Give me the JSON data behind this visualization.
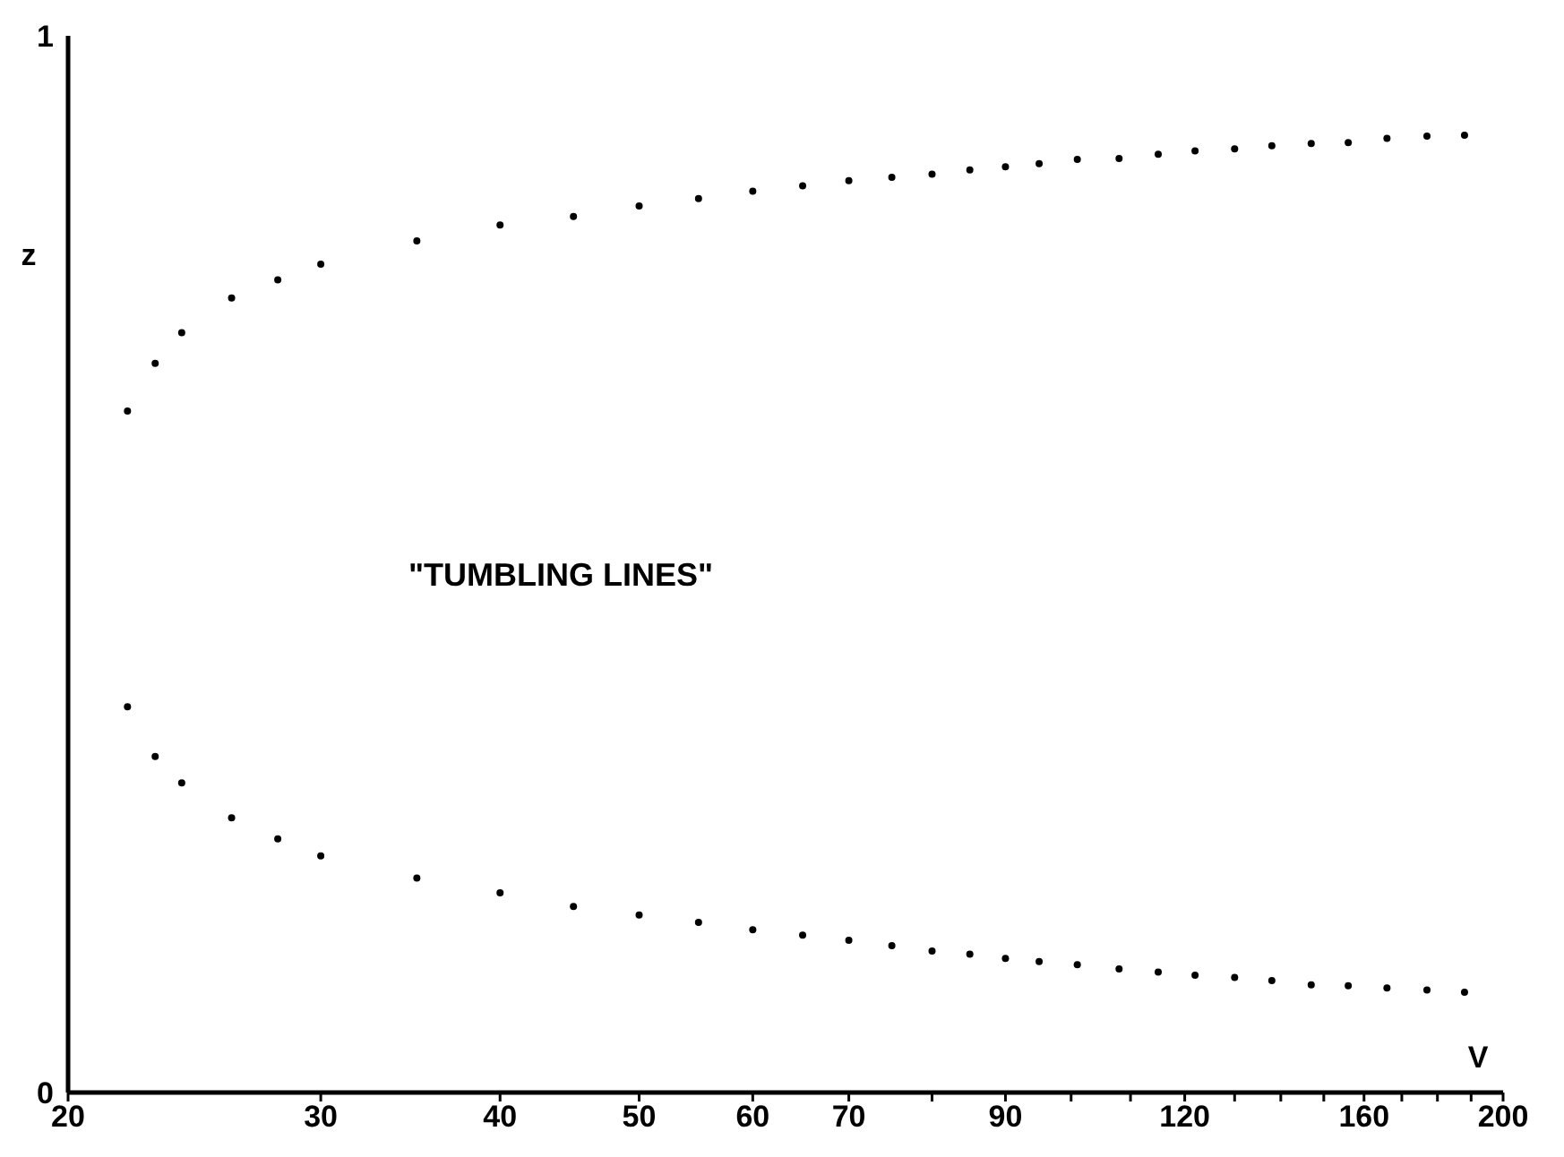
{
  "chart_data": {
    "type": "scatter",
    "xlabel": "V",
    "ylabel": "z",
    "annotations": [
      "\"TUMBLING LINES\""
    ],
    "x": [
      22,
      23,
      24,
      26,
      28,
      30,
      35,
      40,
      45,
      50,
      55,
      60,
      65,
      70,
      75,
      80,
      85,
      90,
      95,
      101,
      108,
      115,
      122,
      130,
      138,
      147,
      156,
      166,
      177,
      188
    ],
    "series": [
      {
        "color": "#000000",
        "values": [
          0.645,
          0.69,
          0.719,
          0.752,
          0.769,
          0.784,
          0.806,
          0.821,
          0.829,
          0.839,
          0.846,
          0.853,
          0.858,
          0.863,
          0.866,
          0.869,
          0.873,
          0.876,
          0.879,
          0.883,
          0.884,
          0.888,
          0.891,
          0.893,
          0.896,
          0.898,
          0.899,
          0.903,
          0.905,
          0.906
        ]
      },
      {
        "color": "#000000",
        "values": [
          0.365,
          0.318,
          0.293,
          0.26,
          0.24,
          0.224,
          0.203,
          0.189,
          0.176,
          0.168,
          0.161,
          0.154,
          0.149,
          0.144,
          0.139,
          0.134,
          0.131,
          0.127,
          0.124,
          0.121,
          0.117,
          0.114,
          0.111,
          0.109,
          0.106,
          0.102,
          0.101,
          0.099,
          0.097,
          0.095
        ]
      }
    ],
    "log": "x",
    "xlim": [
      20,
      200
    ],
    "xticks": [
      20,
      30,
      40,
      50,
      60,
      70,
      {
        "value": 80,
        "label": null
      },
      90,
      {
        "value": 100,
        "label": null
      },
      {
        "value": 110,
        "label": null
      },
      120,
      {
        "value": 130,
        "label": null
      },
      {
        "value": 140,
        "label": null
      },
      {
        "value": 150,
        "label": null
      },
      160,
      {
        "value": 170,
        "label": null
      },
      {
        "value": 180,
        "label": null
      },
      {
        "value": 190,
        "label": null
      },
      200
    ],
    "ylim": [
      0,
      1
    ],
    "yticks": [
      0,
      1
    ],
    "grid": false,
    "legend": false,
    "marker": "circle"
  }
}
